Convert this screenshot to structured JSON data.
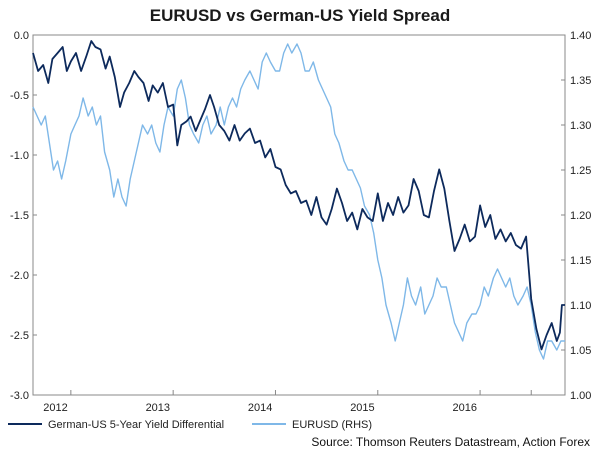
{
  "chart_data": {
    "type": "line",
    "title": "EURUSD vs German-US Yield Spread",
    "source": "Source: Thomson Reuters Datastream, Action Forex",
    "x_range": [
      2011.63,
      2016.83
    ],
    "x_ticks": [
      {
        "label": "2012",
        "at": 2012.0
      },
      {
        "label": "2013",
        "at": 2013.0
      },
      {
        "label": "2014",
        "at": 2014.0
      },
      {
        "label": "2015",
        "at": 2015.0
      },
      {
        "label": "2016",
        "at": 2016.0
      }
    ],
    "y_left": {
      "min": -3.0,
      "max": 0.0,
      "ticks": [
        "0.0",
        "-0.5",
        "-1.0",
        "-1.5",
        "-2.0",
        "-2.5",
        "-3.0"
      ]
    },
    "y_right": {
      "min": 1.0,
      "max": 1.4,
      "ticks": [
        "1.40",
        "1.35",
        "1.30",
        "1.25",
        "1.20",
        "1.15",
        "1.10",
        "1.05",
        "1.00"
      ]
    },
    "series": [
      {
        "name": "German-US 5-Year Yield Differential",
        "axis": "left",
        "color": "#0d2a5c",
        "points": [
          [
            2011.63,
            -0.15
          ],
          [
            2011.68,
            -0.3
          ],
          [
            2011.73,
            -0.25
          ],
          [
            2011.78,
            -0.4
          ],
          [
            2011.82,
            -0.2
          ],
          [
            2011.87,
            -0.15
          ],
          [
            2011.92,
            -0.1
          ],
          [
            2011.96,
            -0.3
          ],
          [
            2012.0,
            -0.22
          ],
          [
            2012.05,
            -0.15
          ],
          [
            2012.1,
            -0.3
          ],
          [
            2012.15,
            -0.18
          ],
          [
            2012.2,
            -0.05
          ],
          [
            2012.24,
            -0.1
          ],
          [
            2012.29,
            -0.12
          ],
          [
            2012.34,
            -0.28
          ],
          [
            2012.38,
            -0.18
          ],
          [
            2012.43,
            -0.35
          ],
          [
            2012.48,
            -0.6
          ],
          [
            2012.52,
            -0.48
          ],
          [
            2012.57,
            -0.4
          ],
          [
            2012.62,
            -0.3
          ],
          [
            2012.66,
            -0.35
          ],
          [
            2012.71,
            -0.4
          ],
          [
            2012.76,
            -0.55
          ],
          [
            2012.8,
            -0.42
          ],
          [
            2012.85,
            -0.48
          ],
          [
            2012.9,
            -0.4
          ],
          [
            2012.95,
            -0.6
          ],
          [
            2013.0,
            -0.58
          ],
          [
            2013.04,
            -0.92
          ],
          [
            2013.08,
            -0.75
          ],
          [
            2013.13,
            -0.72
          ],
          [
            2013.17,
            -0.68
          ],
          [
            2013.22,
            -0.8
          ],
          [
            2013.26,
            -0.72
          ],
          [
            2013.31,
            -0.62
          ],
          [
            2013.36,
            -0.5
          ],
          [
            2013.4,
            -0.6
          ],
          [
            2013.45,
            -0.75
          ],
          [
            2013.5,
            -0.8
          ],
          [
            2013.55,
            -0.88
          ],
          [
            2013.6,
            -0.75
          ],
          [
            2013.65,
            -0.88
          ],
          [
            2013.7,
            -0.82
          ],
          [
            2013.75,
            -0.78
          ],
          [
            2013.8,
            -0.9
          ],
          [
            2013.85,
            -0.88
          ],
          [
            2013.9,
            -1.02
          ],
          [
            2013.95,
            -0.95
          ],
          [
            2014.0,
            -1.1
          ],
          [
            2014.05,
            -1.12
          ],
          [
            2014.1,
            -1.25
          ],
          [
            2014.15,
            -1.32
          ],
          [
            2014.2,
            -1.3
          ],
          [
            2014.25,
            -1.4
          ],
          [
            2014.3,
            -1.38
          ],
          [
            2014.35,
            -1.5
          ],
          [
            2014.4,
            -1.35
          ],
          [
            2014.45,
            -1.52
          ],
          [
            2014.5,
            -1.58
          ],
          [
            2014.55,
            -1.45
          ],
          [
            2014.6,
            -1.28
          ],
          [
            2014.65,
            -1.4
          ],
          [
            2014.7,
            -1.55
          ],
          [
            2014.75,
            -1.48
          ],
          [
            2014.8,
            -1.62
          ],
          [
            2014.85,
            -1.45
          ],
          [
            2014.9,
            -1.52
          ],
          [
            2014.95,
            -1.55
          ],
          [
            2015.0,
            -1.32
          ],
          [
            2015.05,
            -1.55
          ],
          [
            2015.1,
            -1.4
          ],
          [
            2015.15,
            -1.5
          ],
          [
            2015.2,
            -1.35
          ],
          [
            2015.25,
            -1.48
          ],
          [
            2015.3,
            -1.42
          ],
          [
            2015.35,
            -1.2
          ],
          [
            2015.4,
            -1.3
          ],
          [
            2015.45,
            -1.5
          ],
          [
            2015.5,
            -1.52
          ],
          [
            2015.55,
            -1.3
          ],
          [
            2015.6,
            -1.12
          ],
          [
            2015.65,
            -1.28
          ],
          [
            2015.7,
            -1.55
          ],
          [
            2015.75,
            -1.8
          ],
          [
            2015.8,
            -1.7
          ],
          [
            2015.85,
            -1.58
          ],
          [
            2015.9,
            -1.72
          ],
          [
            2015.95,
            -1.68
          ],
          [
            2016.0,
            -1.42
          ],
          [
            2016.05,
            -1.6
          ],
          [
            2016.1,
            -1.5
          ],
          [
            2016.15,
            -1.7
          ],
          [
            2016.2,
            -1.62
          ],
          [
            2016.25,
            -1.72
          ],
          [
            2016.3,
            -1.65
          ],
          [
            2016.35,
            -1.75
          ],
          [
            2016.4,
            -1.78
          ],
          [
            2016.45,
            -1.68
          ],
          [
            2016.5,
            -2.2
          ],
          [
            2016.55,
            -2.45
          ],
          [
            2016.6,
            -2.62
          ],
          [
            2016.65,
            -2.5
          ],
          [
            2016.7,
            -2.4
          ],
          [
            2016.75,
            -2.55
          ],
          [
            2016.78,
            -2.48
          ],
          [
            2016.8,
            -2.25
          ],
          [
            2016.83,
            -2.25
          ]
        ]
      },
      {
        "name": "EURUSD (RHS)",
        "axis": "right",
        "color": "#7fb8e8",
        "points": [
          [
            2011.63,
            1.32
          ],
          [
            2011.67,
            1.31
          ],
          [
            2011.71,
            1.3
          ],
          [
            2011.75,
            1.31
          ],
          [
            2011.79,
            1.28
          ],
          [
            2011.83,
            1.25
          ],
          [
            2011.87,
            1.26
          ],
          [
            2011.91,
            1.24
          ],
          [
            2011.95,
            1.26
          ],
          [
            2012.0,
            1.29
          ],
          [
            2012.04,
            1.3
          ],
          [
            2012.08,
            1.31
          ],
          [
            2012.12,
            1.33
          ],
          [
            2012.17,
            1.31
          ],
          [
            2012.21,
            1.32
          ],
          [
            2012.25,
            1.3
          ],
          [
            2012.29,
            1.31
          ],
          [
            2012.33,
            1.27
          ],
          [
            2012.38,
            1.25
          ],
          [
            2012.42,
            1.22
          ],
          [
            2012.46,
            1.24
          ],
          [
            2012.5,
            1.22
          ],
          [
            2012.54,
            1.21
          ],
          [
            2012.58,
            1.24
          ],
          [
            2012.62,
            1.26
          ],
          [
            2012.66,
            1.28
          ],
          [
            2012.7,
            1.3
          ],
          [
            2012.75,
            1.29
          ],
          [
            2012.79,
            1.3
          ],
          [
            2012.83,
            1.28
          ],
          [
            2012.87,
            1.27
          ],
          [
            2012.91,
            1.3
          ],
          [
            2012.95,
            1.32
          ],
          [
            2013.0,
            1.31
          ],
          [
            2013.04,
            1.34
          ],
          [
            2013.08,
            1.35
          ],
          [
            2013.12,
            1.33
          ],
          [
            2013.16,
            1.3
          ],
          [
            2013.2,
            1.29
          ],
          [
            2013.25,
            1.28
          ],
          [
            2013.29,
            1.3
          ],
          [
            2013.33,
            1.31
          ],
          [
            2013.37,
            1.29
          ],
          [
            2013.42,
            1.3
          ],
          [
            2013.46,
            1.32
          ],
          [
            2013.5,
            1.3
          ],
          [
            2013.54,
            1.32
          ],
          [
            2013.58,
            1.33
          ],
          [
            2013.62,
            1.32
          ],
          [
            2013.66,
            1.34
          ],
          [
            2013.7,
            1.35
          ],
          [
            2013.75,
            1.36
          ],
          [
            2013.79,
            1.35
          ],
          [
            2013.83,
            1.34
          ],
          [
            2013.87,
            1.37
          ],
          [
            2013.91,
            1.38
          ],
          [
            2013.95,
            1.37
          ],
          [
            2014.0,
            1.36
          ],
          [
            2014.04,
            1.36
          ],
          [
            2014.08,
            1.38
          ],
          [
            2014.12,
            1.39
          ],
          [
            2014.16,
            1.38
          ],
          [
            2014.21,
            1.39
          ],
          [
            2014.25,
            1.38
          ],
          [
            2014.29,
            1.36
          ],
          [
            2014.33,
            1.36
          ],
          [
            2014.37,
            1.37
          ],
          [
            2014.42,
            1.35
          ],
          [
            2014.46,
            1.34
          ],
          [
            2014.5,
            1.33
          ],
          [
            2014.54,
            1.32
          ],
          [
            2014.58,
            1.29
          ],
          [
            2014.62,
            1.28
          ],
          [
            2014.67,
            1.26
          ],
          [
            2014.71,
            1.25
          ],
          [
            2014.75,
            1.25
          ],
          [
            2014.79,
            1.24
          ],
          [
            2014.83,
            1.23
          ],
          [
            2014.87,
            1.21
          ],
          [
            2014.92,
            1.2
          ],
          [
            2014.96,
            1.18
          ],
          [
            2015.0,
            1.15
          ],
          [
            2015.04,
            1.13
          ],
          [
            2015.08,
            1.1
          ],
          [
            2015.13,
            1.08
          ],
          [
            2015.17,
            1.06
          ],
          [
            2015.21,
            1.08
          ],
          [
            2015.25,
            1.1
          ],
          [
            2015.29,
            1.13
          ],
          [
            2015.33,
            1.11
          ],
          [
            2015.37,
            1.1
          ],
          [
            2015.42,
            1.12
          ],
          [
            2015.46,
            1.09
          ],
          [
            2015.5,
            1.1
          ],
          [
            2015.54,
            1.11
          ],
          [
            2015.58,
            1.13
          ],
          [
            2015.62,
            1.12
          ],
          [
            2015.67,
            1.12
          ],
          [
            2015.71,
            1.1
          ],
          [
            2015.75,
            1.08
          ],
          [
            2015.79,
            1.07
          ],
          [
            2015.83,
            1.06
          ],
          [
            2015.87,
            1.08
          ],
          [
            2015.92,
            1.09
          ],
          [
            2015.96,
            1.09
          ],
          [
            2016.0,
            1.1
          ],
          [
            2016.04,
            1.12
          ],
          [
            2016.08,
            1.11
          ],
          [
            2016.13,
            1.13
          ],
          [
            2016.17,
            1.14
          ],
          [
            2016.21,
            1.13
          ],
          [
            2016.25,
            1.12
          ],
          [
            2016.29,
            1.13
          ],
          [
            2016.33,
            1.11
          ],
          [
            2016.37,
            1.1
          ],
          [
            2016.42,
            1.11
          ],
          [
            2016.46,
            1.12
          ],
          [
            2016.5,
            1.1
          ],
          [
            2016.54,
            1.07
          ],
          [
            2016.58,
            1.05
          ],
          [
            2016.62,
            1.04
          ],
          [
            2016.66,
            1.06
          ],
          [
            2016.7,
            1.06
          ],
          [
            2016.75,
            1.05
          ],
          [
            2016.79,
            1.06
          ],
          [
            2016.83,
            1.06
          ]
        ]
      }
    ],
    "legend_position": "bottom",
    "grid": false
  }
}
